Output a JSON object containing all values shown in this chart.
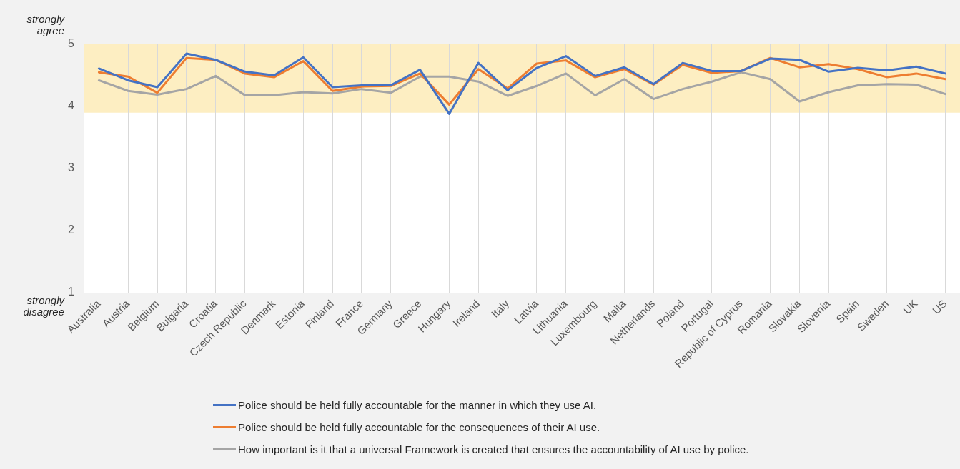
{
  "chart_data": {
    "type": "line",
    "categories": [
      "Australia",
      "Austria",
      "Belgium",
      "Bulgaria",
      "Croatia",
      "Czech Republic",
      "Denmark",
      "Estonia",
      "Finland",
      "France",
      "Germany",
      "Greece",
      "Hungary",
      "Ireland",
      "Italy",
      "Latvia",
      "Lithuania",
      "Luxembourg",
      "Malta",
      "Netherlands",
      "Poland",
      "Portugal",
      "Republic of Cyprus",
      "Romania",
      "Slovakia",
      "Slovenia",
      "Spain",
      "Sweden",
      "UK",
      "US"
    ],
    "series": [
      {
        "name": "Police should be held fully accountable for the manner in which they use AI.",
        "color": "#4472c4",
        "values": [
          4.61,
          4.42,
          4.31,
          4.85,
          4.75,
          4.56,
          4.5,
          4.79,
          4.31,
          4.34,
          4.34,
          4.59,
          3.88,
          4.7,
          4.26,
          4.62,
          4.81,
          4.49,
          4.63,
          4.36,
          4.7,
          4.57,
          4.57,
          4.77,
          4.75,
          4.56,
          4.62,
          4.58,
          4.64,
          4.53
        ]
      },
      {
        "name": "Police should be held fully accountable for the consequences of their AI use.",
        "color": "#ed7d31",
        "values": [
          4.55,
          4.48,
          4.22,
          4.78,
          4.75,
          4.53,
          4.47,
          4.73,
          4.25,
          4.32,
          4.33,
          4.53,
          4.03,
          4.6,
          4.29,
          4.69,
          4.74,
          4.47,
          4.6,
          4.35,
          4.67,
          4.54,
          4.57,
          4.78,
          4.63,
          4.68,
          4.6,
          4.47,
          4.53,
          4.44
        ]
      },
      {
        "name": "How important is it that a universal Framework is created that ensures the accountability of AI use by police.",
        "color": "#a5a5a5",
        "values": [
          4.42,
          4.25,
          4.19,
          4.28,
          4.49,
          4.18,
          4.18,
          4.23,
          4.21,
          4.28,
          4.22,
          4.48,
          4.48,
          4.4,
          4.17,
          4.33,
          4.53,
          4.18,
          4.44,
          4.12,
          4.28,
          4.4,
          4.55,
          4.44,
          4.08,
          4.23,
          4.34,
          4.36,
          4.35,
          4.2
        ]
      }
    ],
    "ylim": [
      1,
      5
    ],
    "yticks": [
      1,
      2,
      3,
      4,
      5
    ],
    "bands": [
      {
        "axis": "y",
        "from": 3.9,
        "to": 5,
        "color": "#fdeec2"
      }
    ],
    "annotations": [
      "strongly agree",
      "strongly disagree"
    ],
    "grid": "x",
    "legend": "bottom",
    "marker": "none",
    "line_style": "solid"
  }
}
